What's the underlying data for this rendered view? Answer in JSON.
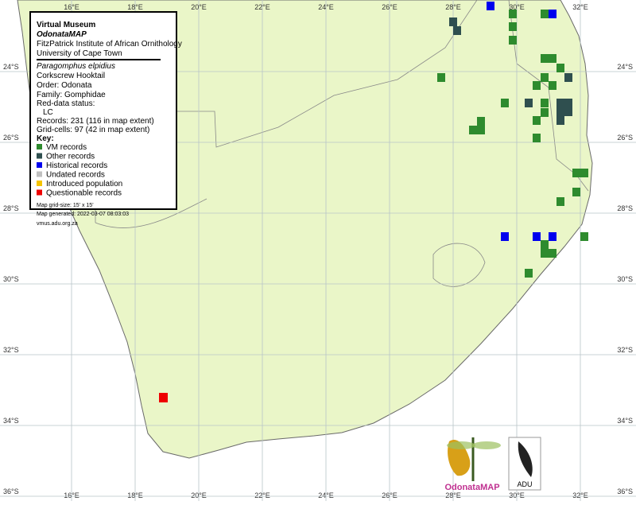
{
  "header": {
    "line1": "Virtual Museum",
    "line2": "OdonataMAP",
    "line3": "FitzPatrick Institute of African Ornithology",
    "line4": "University of Cape Town"
  },
  "species": {
    "scientific": "Paragomphus elpidius",
    "common": "Corkscrew Hooktail",
    "order": "Order: Odonata",
    "family": "Family: Gomphidae",
    "red_data_label": "Red-data status:",
    "red_data": "LC",
    "records": "Records: 231 (116 in map extent)",
    "grid_cells": "Grid-cells: 97 (42 in map extent)"
  },
  "key": {
    "title": "Key:",
    "items": [
      {
        "label": "VM records",
        "color": "#2e8b2e"
      },
      {
        "label": "Other records",
        "color": "#2f4f4f"
      },
      {
        "label": "Historical records",
        "color": "#0000ee"
      },
      {
        "label": "Undated records",
        "color": "#c0c0c0"
      },
      {
        "label": "Introduced population",
        "color": "#f5c400"
      },
      {
        "label": "Questionable records",
        "color": "#ee0000"
      }
    ]
  },
  "footer": {
    "grid_size": "Map grid-size: 15' x 15'",
    "generated": "Map generated: 2022-03-07 08:03:03",
    "url": "vmus.adu.org.za"
  },
  "axes": {
    "longitudes": [
      "16°E",
      "18°E",
      "20°E",
      "22°E",
      "24°E",
      "26°E",
      "28°E",
      "30°E",
      "32°E"
    ],
    "latitudes": [
      "24°S",
      "26°S",
      "28°S",
      "30°S",
      "32°S",
      "34°S",
      "36°S"
    ]
  },
  "logos": {
    "odonata": "OdonataMAP",
    "adu": "ADU"
  }
}
